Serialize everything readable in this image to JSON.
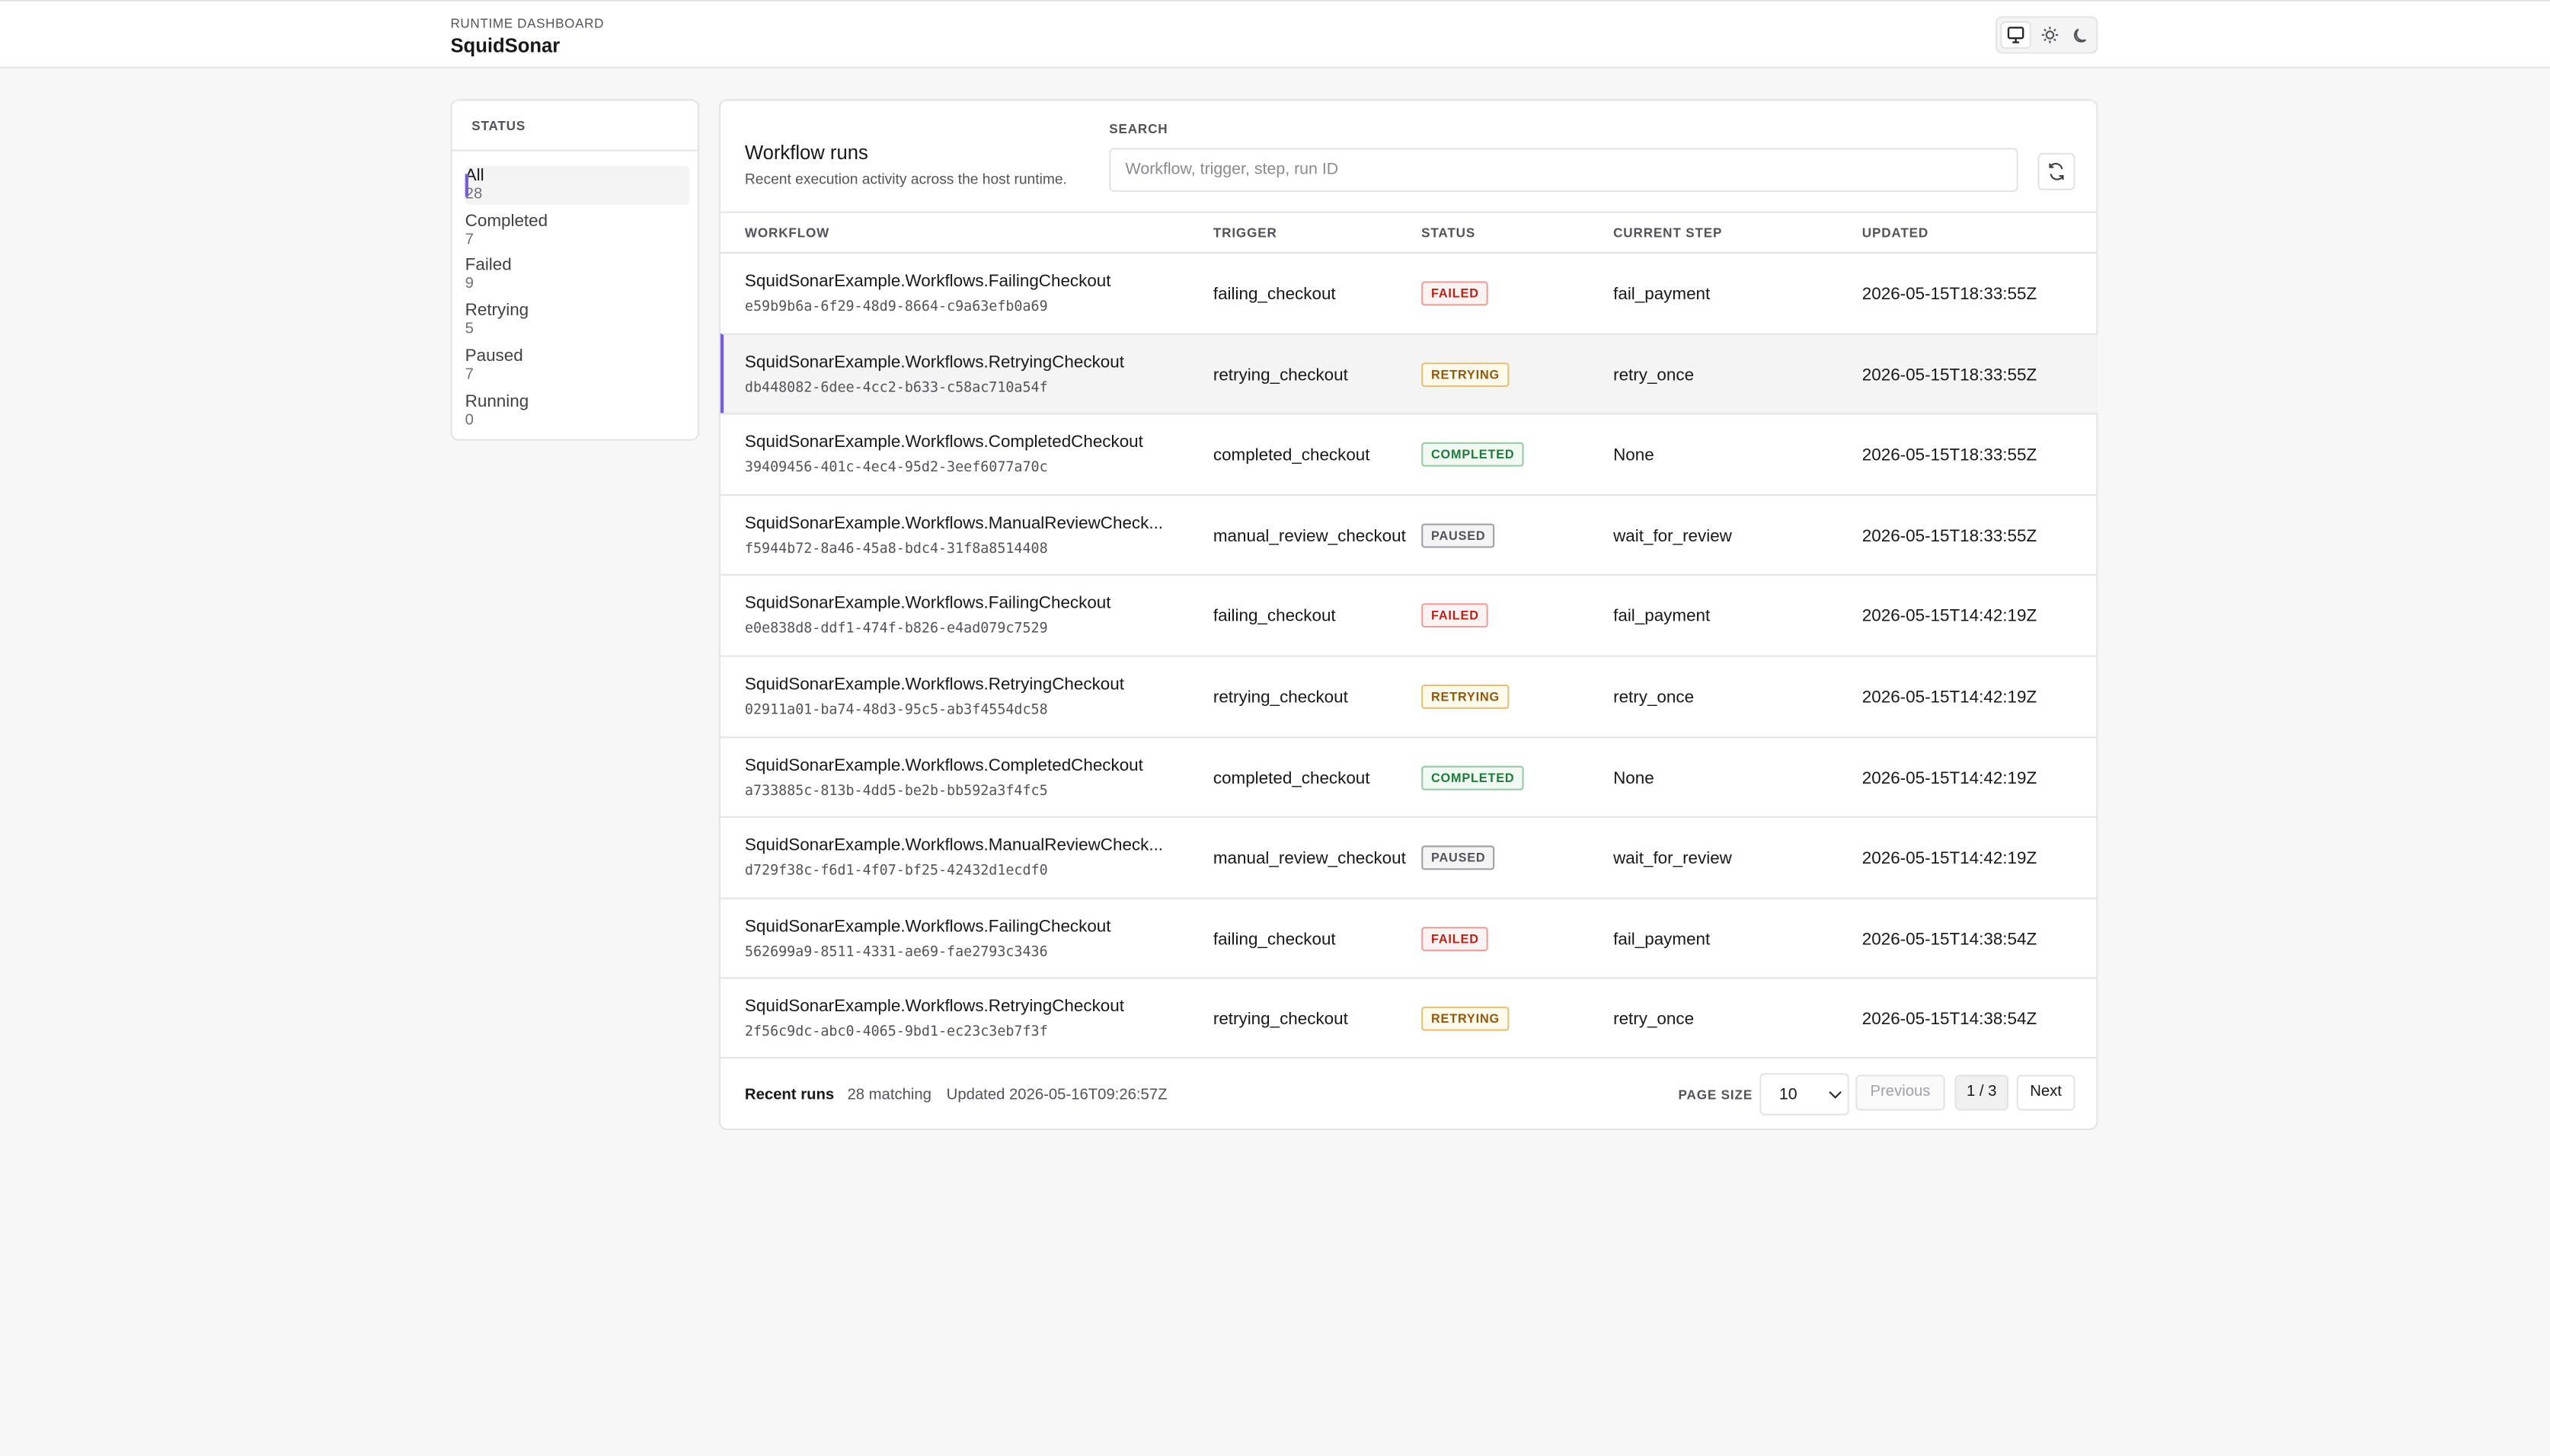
{
  "header": {
    "eyebrow": "RUNTIME DASHBOARD",
    "title": "SquidSonar"
  },
  "sidebar": {
    "title": "STATUS",
    "items": [
      {
        "label": "All",
        "count": "28"
      },
      {
        "label": "Completed",
        "count": "7"
      },
      {
        "label": "Failed",
        "count": "9"
      },
      {
        "label": "Retrying",
        "count": "5"
      },
      {
        "label": "Paused",
        "count": "7"
      },
      {
        "label": "Running",
        "count": "0"
      }
    ]
  },
  "main": {
    "title": "Workflow runs",
    "subtitle": "Recent execution activity across the host runtime.",
    "search_label": "SEARCH",
    "search_placeholder": "Workflow, trigger, step, run ID",
    "table": {
      "columns": [
        "WORKFLOW",
        "TRIGGER",
        "STATUS",
        "CURRENT STEP",
        "UPDATED"
      ],
      "rows": [
        {
          "workflow": "SquidSonarExample.Workflows.FailingCheckout",
          "id": "e59b9b6a-6f29-48d9-8664-c9a63efb0a69",
          "trigger": "failing_checkout",
          "status": "FAILED",
          "step": "fail_payment",
          "updated": "2026-05-15T18:33:55Z"
        },
        {
          "workflow": "SquidSonarExample.Workflows.RetryingCheckout",
          "id": "db448082-6dee-4cc2-b633-c58ac710a54f",
          "trigger": "retrying_checkout",
          "status": "RETRYING",
          "step": "retry_once",
          "updated": "2026-05-15T18:33:55Z"
        },
        {
          "workflow": "SquidSonarExample.Workflows.CompletedCheckout",
          "id": "39409456-401c-4ec4-95d2-3eef6077a70c",
          "trigger": "completed_checkout",
          "status": "COMPLETED",
          "step": "None",
          "updated": "2026-05-15T18:33:55Z"
        },
        {
          "workflow": "SquidSonarExample.Workflows.ManualReviewCheck...",
          "id": "f5944b72-8a46-45a8-bdc4-31f8a8514408",
          "trigger": "manual_review_checkout",
          "status": "PAUSED",
          "step": "wait_for_review",
          "updated": "2026-05-15T18:33:55Z"
        },
        {
          "workflow": "SquidSonarExample.Workflows.FailingCheckout",
          "id": "e0e838d8-ddf1-474f-b826-e4ad079c7529",
          "trigger": "failing_checkout",
          "status": "FAILED",
          "step": "fail_payment",
          "updated": "2026-05-15T14:42:19Z"
        },
        {
          "workflow": "SquidSonarExample.Workflows.RetryingCheckout",
          "id": "02911a01-ba74-48d3-95c5-ab3f4554dc58",
          "trigger": "retrying_checkout",
          "status": "RETRYING",
          "step": "retry_once",
          "updated": "2026-05-15T14:42:19Z"
        },
        {
          "workflow": "SquidSonarExample.Workflows.CompletedCheckout",
          "id": "a733885c-813b-4dd5-be2b-bb592a3f4fc5",
          "trigger": "completed_checkout",
          "status": "COMPLETED",
          "step": "None",
          "updated": "2026-05-15T14:42:19Z"
        },
        {
          "workflow": "SquidSonarExample.Workflows.ManualReviewCheck...",
          "id": "d729f38c-f6d1-4f07-bf25-42432d1ecdf0",
          "trigger": "manual_review_checkout",
          "status": "PAUSED",
          "step": "wait_for_review",
          "updated": "2026-05-15T14:42:19Z"
        },
        {
          "workflow": "SquidSonarExample.Workflows.FailingCheckout",
          "id": "562699a9-8511-4331-ae69-fae2793c3436",
          "trigger": "failing_checkout",
          "status": "FAILED",
          "step": "fail_payment",
          "updated": "2026-05-15T14:38:54Z"
        },
        {
          "workflow": "SquidSonarExample.Workflows.RetryingCheckout",
          "id": "2f56c9dc-abc0-4065-9bd1-ec23c3eb7f3f",
          "trigger": "retrying_checkout",
          "status": "RETRYING",
          "step": "retry_once",
          "updated": "2026-05-15T14:38:54Z"
        }
      ]
    },
    "footer": {
      "label": "Recent runs",
      "matching": "28 matching",
      "updated": "Updated 2026-05-16T09:26:57Z",
      "page_size_label": "PAGE SIZE",
      "page_size": "10",
      "previous": "Previous",
      "page": "1 / 3",
      "next": "Next"
    }
  }
}
